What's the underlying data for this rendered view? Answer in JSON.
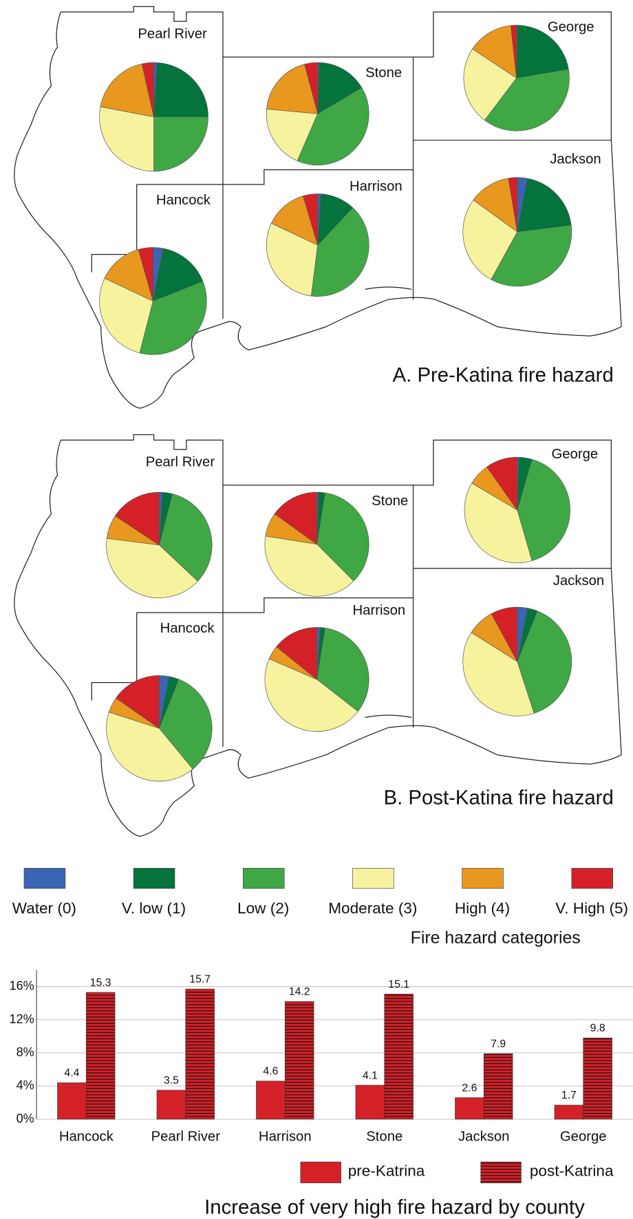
{
  "legend": {
    "title": "Fire hazard categories",
    "categories": [
      "Water (0)",
      "V. low (1)",
      "Low (2)",
      "Moderate (3)",
      "High (4)",
      "V. High (5)"
    ],
    "colors": [
      "#3a64b4",
      "#04733c",
      "#3fa845",
      "#f6f29e",
      "#e9981f",
      "#d42128"
    ]
  },
  "chart_data": [
    {
      "type": "pie",
      "title": "A. Pre-Katina fire hazard",
      "pies": [
        {
          "name": "Pearl River",
          "values": [
            1,
            24,
            25,
            28,
            18.5,
            3.5
          ]
        },
        {
          "name": "Stone",
          "values": [
            0.5,
            16,
            40,
            20,
            19.4,
            4.1
          ]
        },
        {
          "name": "George",
          "values": [
            0.3,
            22,
            38,
            24,
            14,
            1.7
          ]
        },
        {
          "name": "Hancock",
          "values": [
            3,
            16,
            35,
            28,
            13.6,
            4.4
          ]
        },
        {
          "name": "Harrison",
          "values": [
            1,
            11,
            40,
            30,
            13.4,
            4.6
          ]
        },
        {
          "name": "Jackson",
          "values": [
            3,
            20,
            35,
            27,
            12.4,
            2.6
          ]
        }
      ]
    },
    {
      "type": "pie",
      "title": "B. Post-Katina fire hazard",
      "pies": [
        {
          "name": "Pearl River",
          "values": [
            1,
            3,
            33,
            40,
            7.3,
            15.7
          ]
        },
        {
          "name": "Stone",
          "values": [
            0.5,
            2,
            35,
            40,
            7.4,
            15.1
          ]
        },
        {
          "name": "George",
          "values": [
            0.5,
            4,
            41,
            38,
            6.7,
            9.8
          ]
        },
        {
          "name": "Hancock",
          "values": [
            3,
            3,
            33,
            41,
            4.7,
            15.3
          ]
        },
        {
          "name": "Harrison",
          "values": [
            1,
            1.5,
            33,
            46,
            4.3,
            14.2
          ]
        },
        {
          "name": "Jackson",
          "values": [
            3,
            3,
            39,
            39,
            8.1,
            7.9
          ]
        }
      ]
    },
    {
      "type": "bar",
      "title": "Increase of very high fire hazard by county",
      "categories": [
        "Hancock",
        "Pearl River",
        "Harrison",
        "Stone",
        "Jackson",
        "George"
      ],
      "series": [
        {
          "name": "pre-Katrina",
          "color": "#d42128",
          "values": [
            4.4,
            3.5,
            4.6,
            4.1,
            2.6,
            1.7
          ]
        },
        {
          "name": "post-Katrina",
          "color": "#d42128",
          "hatch": "horizontal",
          "values": [
            15.3,
            15.7,
            14.2,
            15.1,
            7.9,
            9.8
          ]
        }
      ],
      "ylim": [
        0,
        18
      ],
      "yticks": [
        {
          "value": 0,
          "label": "0%"
        },
        {
          "value": 4,
          "label": "4%"
        },
        {
          "value": 8,
          "label": "8%"
        },
        {
          "value": 12,
          "label": "12%"
        },
        {
          "value": 16,
          "label": "16%"
        }
      ],
      "grid": true
    }
  ]
}
